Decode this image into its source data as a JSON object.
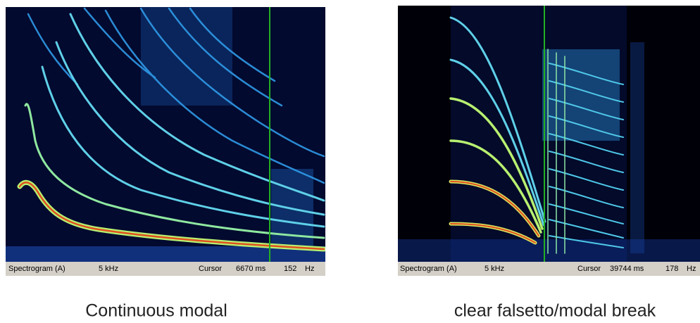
{
  "panels": [
    {
      "status": {
        "mode": "Spectrogram (A)",
        "range": "5 kHz",
        "cursor_label": "Cursor",
        "time": "6670 ms",
        "frequency": "152",
        "unit": "Hz"
      },
      "caption": "Continuous modal"
    },
    {
      "status": {
        "mode": "Spectrogram (A)",
        "range": "5 kHz",
        "cursor_label": "Cursor",
        "time": "39744 ms",
        "frequency": "178",
        "unit": "Hz"
      },
      "caption": "clear falsetto/modal break"
    }
  ]
}
